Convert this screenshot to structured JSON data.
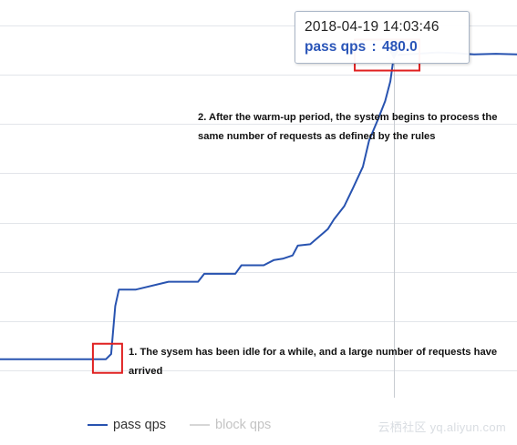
{
  "chart_data": {
    "type": "line",
    "title": "",
    "xlabel": "",
    "ylabel": "",
    "x_domain": [
      0,
      100
    ],
    "ylim": [
      0,
      550
    ],
    "grid": {
      "horizontal": true,
      "vertical": false
    },
    "legend_placement": "bottom-left",
    "series": [
      {
        "name": "pass qps",
        "color": "#2853b0",
        "x": [
          0,
          20.5,
          21.5,
          22.3,
          23.0,
          26.3,
          32.6,
          38.3,
          39.5,
          45.5,
          46.7,
          51.0,
          53.0,
          54.7,
          56.6,
          57.6,
          60.0,
          63.4,
          64.6,
          66.6,
          68.3,
          70.2,
          71.4,
          73.1,
          74.5,
          75.5,
          76.2,
          80.6,
          84.7,
          88.2,
          91.7,
          95.9,
          100
        ],
        "y": [
          17,
          17,
          25,
          98,
          123,
          123,
          135,
          135,
          147,
          147,
          160,
          160,
          168,
          170,
          175,
          190,
          192,
          215,
          230,
          250,
          278,
          310,
          350,
          382,
          410,
          440,
          480,
          482,
          484,
          483,
          481,
          482,
          481
        ]
      },
      {
        "name": "block qps",
        "color": "#d6d6d6",
        "x": [],
        "y": []
      }
    ],
    "tooltip": {
      "time": "2018-04-19 14:03:46",
      "label": "pass qps",
      "sep": ":",
      "value": "480.0"
    },
    "annotations": [
      {
        "text": "2. After the warm-up period, the system begins to process the same number of requests as defined by the rules"
      },
      {
        "text": "1. The sysem has been idle for a while, and a large number of requests have arrived"
      }
    ],
    "highlight_boxes": [
      {
        "color": "#e02020",
        "at": "start-of-burst"
      },
      {
        "color": "#e02020",
        "at": "peak"
      }
    ]
  },
  "watermark": "云栖社区 yq.aliyun.com"
}
